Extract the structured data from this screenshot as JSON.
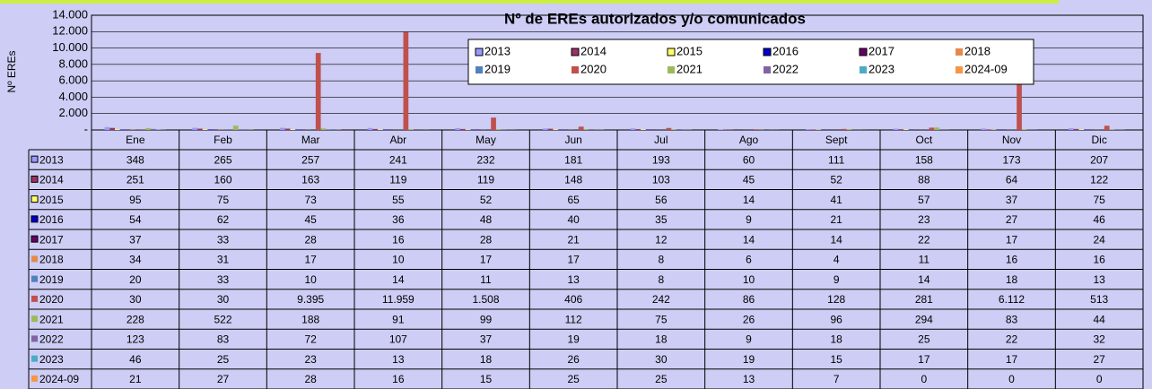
{
  "chart_data": {
    "type": "bar",
    "title": "Nº de EREs autorizados y/o comunicados",
    "y_label": "Nº EREs",
    "categories": [
      "Ene",
      "Feb",
      "Mar",
      "Abr",
      "May",
      "Jun",
      "Jul",
      "Ago",
      "Sept",
      "Oct",
      "Nov",
      "Dic"
    ],
    "ylim": [
      0,
      14000
    ],
    "yticks": [
      {
        "value": 0,
        "label": "-"
      },
      {
        "value": 2000,
        "label": "2.000"
      },
      {
        "value": 4000,
        "label": "4.000"
      },
      {
        "value": 6000,
        "label": "6.000"
      },
      {
        "value": 8000,
        "label": "8.000"
      },
      {
        "value": 10000,
        "label": "10.000"
      },
      {
        "value": 12000,
        "label": "12.000"
      },
      {
        "value": 14000,
        "label": "14.000"
      }
    ],
    "grid": true,
    "series": [
      {
        "name": "2013",
        "color": "#9999ff",
        "values": [
          348,
          265,
          257,
          241,
          232,
          181,
          193,
          60,
          111,
          158,
          173,
          207
        ]
      },
      {
        "name": "2014",
        "color": "#993366",
        "values": [
          251,
          160,
          163,
          119,
          119,
          148,
          103,
          45,
          52,
          88,
          64,
          122
        ]
      },
      {
        "name": "2015",
        "color": "#ffff66",
        "values": [
          95,
          75,
          73,
          55,
          52,
          65,
          56,
          14,
          41,
          57,
          37,
          75
        ]
      },
      {
        "name": "2016",
        "color": "#0000cc",
        "values": [
          54,
          62,
          45,
          36,
          48,
          40,
          35,
          9,
          21,
          23,
          27,
          46
        ]
      },
      {
        "name": "2017",
        "color": "#660066",
        "values": [
          37,
          33,
          28,
          16,
          28,
          21,
          12,
          14,
          14,
          22,
          17,
          24
        ]
      },
      {
        "name": "2018",
        "color": "#e6894b",
        "values": [
          34,
          31,
          17,
          10,
          17,
          17,
          8,
          6,
          4,
          11,
          16,
          16
        ]
      },
      {
        "name": "2019",
        "color": "#4f81bd",
        "values": [
          20,
          33,
          10,
          14,
          11,
          13,
          8,
          10,
          9,
          14,
          18,
          13
        ]
      },
      {
        "name": "2020",
        "color": "#c0504d",
        "values": [
          30,
          30,
          9395,
          11959,
          1508,
          406,
          242,
          86,
          128,
          281,
          6112,
          513
        ],
        "value_labels": [
          "30",
          "30",
          "9.395",
          "11.959",
          "1.508",
          "406",
          "242",
          "86",
          "128",
          "281",
          "6.112",
          "513"
        ]
      },
      {
        "name": "2021",
        "color": "#9bbb59",
        "values": [
          228,
          522,
          188,
          91,
          99,
          112,
          75,
          26,
          96,
          294,
          83,
          44
        ]
      },
      {
        "name": "2022",
        "color": "#8064a2",
        "values": [
          123,
          83,
          72,
          107,
          37,
          19,
          18,
          9,
          18,
          25,
          22,
          32
        ]
      },
      {
        "name": "2023",
        "color": "#4bacc6",
        "values": [
          46,
          25,
          23,
          13,
          18,
          26,
          30,
          19,
          15,
          17,
          17,
          27
        ]
      },
      {
        "name": "2024-09",
        "color": "#f79646",
        "values": [
          21,
          27,
          28,
          16,
          15,
          25,
          25,
          13,
          7,
          0,
          0,
          0
        ]
      }
    ]
  }
}
